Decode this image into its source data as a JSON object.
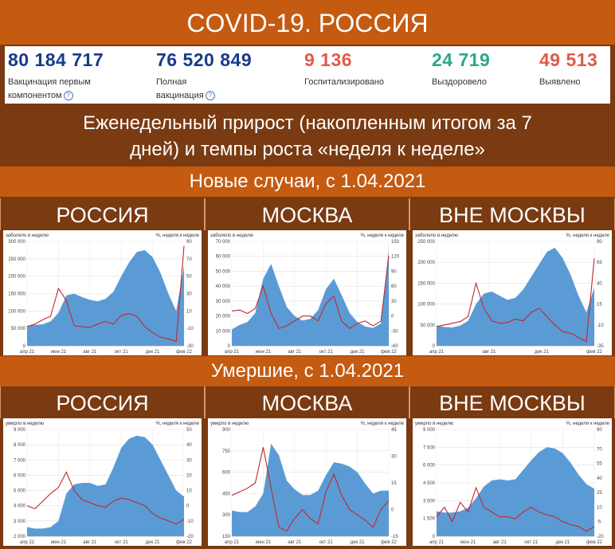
{
  "header": {
    "title": "COVID-19. РОССИЯ"
  },
  "stats": [
    {
      "value": "80 184 717",
      "label1": "Вакцинация первым",
      "label2": "компонентом",
      "help": "?",
      "color": "#1a3a8a"
    },
    {
      "value": "76 520 849",
      "label1": "Полная",
      "label2": "вакцинация",
      "help": "?",
      "color": "#1a3a8a"
    },
    {
      "value": "9 136",
      "label1": "Госпитализировано",
      "label2": "",
      "help": "",
      "color": "#e05a4a"
    },
    {
      "value": "24 719",
      "label1": "Выздоровело",
      "label2": "",
      "help": "",
      "color": "#2aa88a"
    },
    {
      "value": "49 513",
      "label1": "Выявлено",
      "label2": "",
      "help": "",
      "color": "#e05a4a"
    }
  ],
  "subtitle": {
    "line1": "Еженедельный прирост (накопленным итогом за 7",
    "line2": "дней) и темпы роста «неделя к неделе»"
  },
  "sections": {
    "cases": "Новые случаи, с 1.04.2021",
    "deaths": "Умершие, с 1.04.2021"
  },
  "panels": {
    "russia": "РОССИЯ",
    "moscow": "МОСКВА",
    "outside": "ВНЕ МОСКВЫ"
  },
  "colors": {
    "area": "#5b9bd5",
    "line": "#c0282d",
    "header_band": "#c55a11",
    "dark_band": "#7a3a12"
  },
  "chart_data": [
    {
      "type": "area",
      "group": "cases",
      "region": "РОССИЯ",
      "ylabel": "заболело в неделю",
      "y2label": "%, неделя к неделе",
      "ylim": [
        0,
        300000
      ],
      "yticks": [
        0,
        50000,
        100000,
        150000,
        200000,
        250000,
        300000
      ],
      "yticklabels": [
        "0",
        "50 000",
        "100 000",
        "150 000",
        "200 000",
        "250 000",
        "300 000"
      ],
      "y2lim": [
        -30,
        90
      ],
      "y2ticks": [
        -30,
        -10,
        10,
        30,
        50,
        70,
        90
      ],
      "xticklabels": [
        "апр 21",
        "июн 21",
        "авг 21",
        "окт 21",
        "дек 21",
        "фев 22"
      ],
      "area": [
        58000,
        60000,
        62000,
        70000,
        95000,
        145000,
        150000,
        140000,
        132000,
        128000,
        135000,
        155000,
        200000,
        240000,
        270000,
        275000,
        255000,
        210000,
        150000,
        100000,
        230000
      ],
      "growth": [
        -8,
        -5,
        0,
        4,
        36,
        22,
        -7,
        -8,
        -9,
        -5,
        -2,
        -5,
        5,
        7,
        4,
        -8,
        -15,
        -20,
        -22,
        -25,
        85
      ]
    },
    {
      "type": "area",
      "group": "cases",
      "region": "МОСКВА",
      "ylabel": "заболело в неделю",
      "y2label": "%, неделя к неделе",
      "ylim": [
        0,
        70000
      ],
      "yticks": [
        0,
        10000,
        20000,
        30000,
        40000,
        50000,
        60000,
        70000
      ],
      "yticklabels": [
        "0",
        "10 000",
        "20 000",
        "30 000",
        "40 000",
        "50 000",
        "60 000",
        "70 000"
      ],
      "y2lim": [
        -60,
        150
      ],
      "y2ticks": [
        -60,
        -30,
        0,
        30,
        60,
        90,
        120,
        150
      ],
      "xticklabels": [
        "апр 21",
        "июн 21",
        "авг 21",
        "окт 21",
        "дек 21",
        "фев 22"
      ],
      "area": [
        11000,
        14000,
        16000,
        22000,
        45000,
        55000,
        40000,
        26000,
        20000,
        17000,
        18000,
        24000,
        38000,
        45000,
        34000,
        22000,
        16000,
        13000,
        12000,
        15000,
        65000
      ],
      "growth": [
        10,
        12,
        5,
        15,
        60,
        5,
        -25,
        -20,
        -10,
        0,
        0,
        -10,
        25,
        40,
        -10,
        -25,
        -15,
        -10,
        -20,
        -10,
        120
      ]
    },
    {
      "type": "area",
      "group": "cases",
      "region": "ВНЕ МОСКВЫ",
      "ylabel": "заболело в неделю",
      "y2label": "%, неделя к неделе",
      "ylim": [
        0,
        250000
      ],
      "yticks": [
        0,
        50000,
        100000,
        150000,
        200000,
        250000
      ],
      "yticklabels": [
        "0",
        "50 000",
        "100 000",
        "150 000",
        "200 000",
        "250 000"
      ],
      "y2lim": [
        -35,
        90
      ],
      "y2ticks": [
        -35,
        -10,
        15,
        40,
        65,
        90
      ],
      "xticklabels": [
        "апр 21",
        "авг 21",
        "дек 21",
        "фев 22"
      ],
      "area": [
        48000,
        45000,
        44000,
        48000,
        60000,
        100000,
        125000,
        130000,
        120000,
        110000,
        115000,
        135000,
        165000,
        195000,
        225000,
        235000,
        210000,
        170000,
        120000,
        80000,
        140000
      ],
      "growth": [
        -12,
        -10,
        -8,
        -6,
        0,
        40,
        10,
        -5,
        -8,
        -7,
        -3,
        -5,
        5,
        10,
        0,
        -10,
        -18,
        -20,
        -25,
        -30,
        70
      ]
    },
    {
      "type": "area",
      "group": "deaths",
      "region": "РОССИЯ",
      "ylabel": "умерло в неделю",
      "y2label": "%, неделя к неделе",
      "ylim": [
        2000,
        9000
      ],
      "yticks": [
        2000,
        3000,
        4000,
        5000,
        6000,
        7000,
        8000,
        9000
      ],
      "yticklabels": [
        "2 000",
        "3 000",
        "4 000",
        "5 000",
        "6 000",
        "7 000",
        "8 000",
        "9 000"
      ],
      "y2lim": [
        -20,
        50
      ],
      "y2ticks": [
        -20,
        -10,
        0,
        10,
        20,
        30,
        40,
        50
      ],
      "xticklabels": [
        "апр 21",
        "июн 21",
        "авг 21",
        "окт 21",
        "дек 21",
        "фев 22"
      ],
      "area": [
        2600,
        2500,
        2500,
        2600,
        3000,
        4800,
        5400,
        5500,
        5500,
        5300,
        5400,
        6500,
        7800,
        8400,
        8600,
        8500,
        8000,
        7000,
        6000,
        5000,
        4600
      ],
      "growth": [
        0,
        -2,
        3,
        8,
        12,
        22,
        10,
        4,
        2,
        0,
        -1,
        3,
        5,
        4,
        2,
        0,
        -5,
        -8,
        -10,
        -12,
        -9
      ]
    },
    {
      "type": "area",
      "group": "deaths",
      "region": "МОСКВА",
      "ylabel": "умерло в неделю",
      "y2label": "%, неделя к неделе",
      "ylim": [
        150,
        900
      ],
      "yticks": [
        150,
        300,
        450,
        600,
        750,
        900
      ],
      "yticklabels": [
        "150",
        "300",
        "450",
        "600",
        "750",
        "900"
      ],
      "y2lim": [
        -15,
        45
      ],
      "y2ticks": [
        -15,
        0,
        15,
        30,
        45
      ],
      "xticklabels": [
        "апр 21",
        "июн 21",
        "авг 21",
        "окт 21",
        "дек 21",
        "фев 22"
      ],
      "area": [
        330,
        320,
        320,
        360,
        450,
        800,
        720,
        540,
        480,
        440,
        440,
        470,
        580,
        670,
        660,
        640,
        600,
        520,
        450,
        470,
        470
      ],
      "growth": [
        8,
        10,
        12,
        15,
        35,
        12,
        -10,
        -12,
        -5,
        0,
        -5,
        -8,
        10,
        20,
        8,
        0,
        -3,
        -6,
        -10,
        0,
        5
      ]
    },
    {
      "type": "area",
      "group": "deaths",
      "region": "ВНЕ МОСКВЫ",
      "ylabel": "умерло в неделю",
      "y2label": "%, неделя к неделе",
      "ylim": [
        0,
        9000
      ],
      "yticks": [
        0,
        1500,
        3000,
        4500,
        6000,
        7500,
        9000
      ],
      "yticklabels": [
        "0",
        "1 500",
        "3 000",
        "4 500",
        "6 000",
        "7 500",
        "9 000"
      ],
      "y2lim": [
        -20,
        90
      ],
      "y2ticks": [
        -20,
        -5,
        10,
        25,
        40,
        55,
        70,
        90
      ],
      "xticklabels": [
        "апр 21",
        "июн 21",
        "авг 21",
        "окт 21",
        "дек 21",
        "фев 22"
      ],
      "area": [
        2100,
        2000,
        2000,
        2100,
        2400,
        3200,
        4200,
        4700,
        4800,
        4700,
        4800,
        5600,
        6400,
        7100,
        7500,
        7400,
        7000,
        6200,
        5200,
        4400,
        4000
      ],
      "growth": [
        0,
        10,
        -5,
        15,
        5,
        30,
        10,
        5,
        0,
        0,
        -2,
        5,
        10,
        5,
        2,
        0,
        -5,
        -8,
        -10,
        -15,
        -10
      ]
    }
  ]
}
